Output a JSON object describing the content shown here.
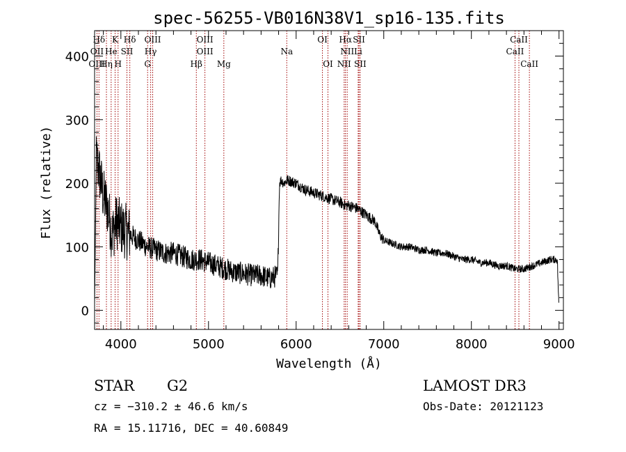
{
  "chart_data": {
    "type": "line",
    "title": "spec-56255-VB016N38V1_sp16-135.fits",
    "xlabel": "Wavelength (Å)",
    "ylabel": "Flux (relative)",
    "xlim": [
      3700,
      9050
    ],
    "ylim": [
      -30,
      440
    ],
    "xticks": [
      4000,
      5000,
      6000,
      7000,
      8000,
      9000
    ],
    "yticks": [
      0,
      100,
      200,
      300,
      400
    ],
    "spectrum_anchors": {
      "x": [
        3700,
        3720,
        3750,
        3800,
        3850,
        3900,
        3950,
        4000,
        4100,
        4200,
        4300,
        4400,
        4500,
        4600,
        4700,
        4800,
        4900,
        5000,
        5100,
        5200,
        5300,
        5400,
        5500,
        5600,
        5700,
        5790,
        5810,
        5830,
        5860,
        5900,
        6000,
        6100,
        6200,
        6300,
        6400,
        6500,
        6560,
        6600,
        6700,
        6800,
        6900,
        6950,
        7000,
        7100,
        7200,
        7300,
        7400,
        7500,
        7600,
        7700,
        7800,
        7900,
        8000,
        8100,
        8200,
        8300,
        8400,
        8500,
        8600,
        8700,
        8800,
        8900,
        8980,
        9000
      ],
      "y": [
        10,
        240,
        220,
        180,
        160,
        120,
        140,
        130,
        120,
        110,
        100,
        95,
        90,
        90,
        85,
        80,
        80,
        75,
        70,
        65,
        60,
        58,
        55,
        55,
        50,
        55,
        200,
        205,
        200,
        205,
        200,
        190,
        185,
        180,
        175,
        170,
        165,
        165,
        160,
        150,
        140,
        120,
        110,
        105,
        100,
        100,
        95,
        95,
        90,
        90,
        85,
        80,
        80,
        75,
        75,
        70,
        70,
        65,
        65,
        70,
        75,
        80,
        80,
        0
      ]
    },
    "spectral_lines": [
      {
        "label": "Hδ",
        "wavelength": 3750,
        "tier": 1
      },
      {
        "label": "K",
        "wavelength": 3934,
        "tier": 1
      },
      {
        "label": "Hδ",
        "wavelength": 4102,
        "tier": 1
      },
      {
        "label": "OIII",
        "wavelength": 4363,
        "tier": 1
      },
      {
        "label": "OIII",
        "wavelength": 4959,
        "tier": 1
      },
      {
        "label": "OI",
        "wavelength": 6300,
        "tier": 1
      },
      {
        "label": "Hα",
        "wavelength": 6563,
        "tier": 1
      },
      {
        "label": "SII",
        "wavelength": 6717,
        "tier": 1
      },
      {
        "label": "CaII",
        "wavelength": 8542,
        "tier": 1
      },
      {
        "label": "OII",
        "wavelength": 3727,
        "tier": 2
      },
      {
        "label": "He",
        "wavelength": 3889,
        "tier": 2
      },
      {
        "label": "SII",
        "wavelength": 4069,
        "tier": 2
      },
      {
        "label": "Hγ",
        "wavelength": 4340,
        "tier": 2
      },
      {
        "label": "OIII",
        "wavelength": 4959,
        "tier": 2
      },
      {
        "label": "Na",
        "wavelength": 5893,
        "tier": 2
      },
      {
        "label": "NII",
        "wavelength": 6583,
        "tier": 2
      },
      {
        "label": "Li",
        "wavelength": 6708,
        "tier": 2
      },
      {
        "label": "CaII",
        "wavelength": 8498,
        "tier": 2
      },
      {
        "label": "OIII",
        "wavelength": 3727,
        "tier": 3
      },
      {
        "label": "Hη",
        "wavelength": 3835,
        "tier": 3
      },
      {
        "label": "H",
        "wavelength": 3968,
        "tier": 3
      },
      {
        "label": "G",
        "wavelength": 4305,
        "tier": 3
      },
      {
        "label": "Hβ",
        "wavelength": 4861,
        "tier": 3
      },
      {
        "label": "Mg",
        "wavelength": 5175,
        "tier": 3
      },
      {
        "label": "OI",
        "wavelength": 6363,
        "tier": 3
      },
      {
        "label": "NII",
        "wavelength": 6548,
        "tier": 3
      },
      {
        "label": "SII",
        "wavelength": 6731,
        "tier": 3
      },
      {
        "label": "CaII",
        "wavelength": 8662,
        "tier": 3
      }
    ],
    "line_color": "#000000",
    "marker_color": "#a00000"
  },
  "info": {
    "class": "STAR",
    "subclass": "G2",
    "survey": "LAMOST DR3",
    "cz": "cz = −310.2 ± 46.6 km/s",
    "obs_date": "Obs-Date: 20121123",
    "coords": "RA =  15.11716, DEC =  40.60849"
  }
}
